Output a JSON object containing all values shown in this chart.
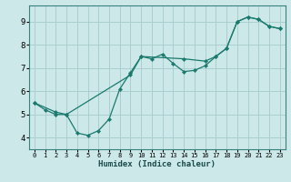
{
  "xlabel": "Humidex (Indice chaleur)",
  "xlim": [
    -0.5,
    23.5
  ],
  "ylim": [
    3.5,
    9.7
  ],
  "xticks": [
    0,
    1,
    2,
    3,
    4,
    5,
    6,
    7,
    8,
    9,
    10,
    11,
    12,
    13,
    14,
    15,
    16,
    17,
    18,
    19,
    20,
    21,
    22,
    23
  ],
  "yticks": [
    4,
    5,
    6,
    7,
    8,
    9
  ],
  "bg_color": "#cce8e8",
  "grid_color": "#aacfcf",
  "line_color": "#1a7a6e",
  "line1_x": [
    0,
    1,
    2,
    3,
    4,
    5,
    6,
    7,
    8,
    9,
    10,
    11,
    12,
    13,
    14,
    15,
    16,
    17,
    18,
    19,
    20,
    21,
    22,
    23
  ],
  "line1_y": [
    5.5,
    5.2,
    5.0,
    5.0,
    4.2,
    4.1,
    4.3,
    4.8,
    6.1,
    6.8,
    7.5,
    7.4,
    7.6,
    7.2,
    6.85,
    6.9,
    7.1,
    7.5,
    7.85,
    9.0,
    9.2,
    9.1,
    8.8,
    8.7
  ],
  "line2_x": [
    0,
    2,
    3,
    9,
    10,
    14,
    16,
    17,
    18,
    19,
    20,
    21,
    22,
    23
  ],
  "line2_y": [
    5.5,
    5.1,
    5.0,
    6.7,
    7.5,
    7.4,
    7.3,
    7.5,
    7.85,
    9.0,
    9.2,
    9.1,
    8.8,
    8.7
  ]
}
